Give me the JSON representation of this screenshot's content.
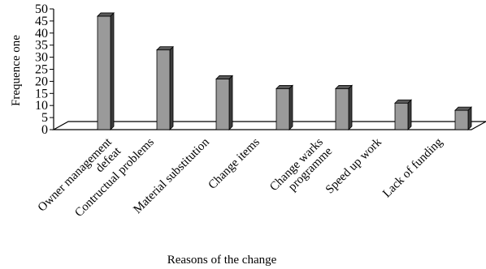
{
  "chart_data": {
    "type": "bar",
    "style": "3d-column",
    "xlabel": "Reasons of the change",
    "ylabel": "Frequence one",
    "ylim": [
      0,
      50
    ],
    "yticks": [
      0,
      5,
      10,
      15,
      20,
      25,
      30,
      35,
      40,
      45,
      50
    ],
    "categories": [
      [
        "Owner management",
        "defeat"
      ],
      [
        "Contructual problems"
      ],
      [
        "Material substitution"
      ],
      [
        "Change items"
      ],
      [
        "Change warks",
        "programme"
      ],
      [
        "Speed up work"
      ],
      [
        "Lack of funding"
      ]
    ],
    "values": [
      47,
      33,
      21,
      17,
      17,
      11,
      8
    ],
    "colors": {
      "bar_front": "#9a9a9a",
      "bar_top": "#5a5a5a",
      "bar_side": "#3c3c3c",
      "floor": "#ffffff",
      "axis": "#000000"
    }
  }
}
